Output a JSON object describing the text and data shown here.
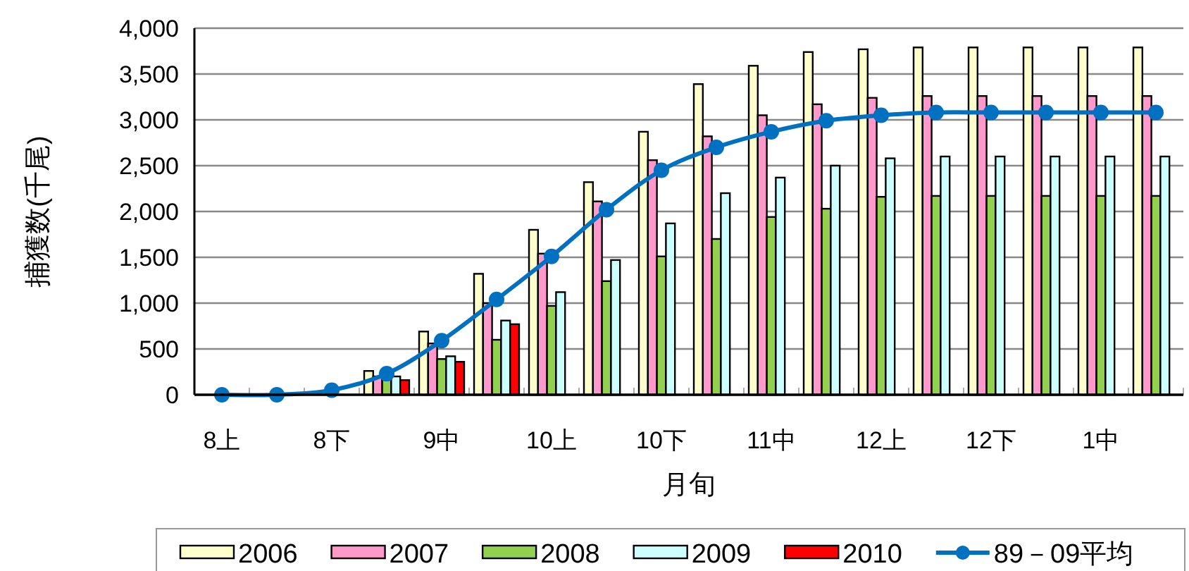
{
  "chart_data": {
    "type": "bar",
    "xlabel": "月旬",
    "ylabel": "捕獲数(千尾)",
    "categories": [
      "8上",
      null,
      "8下",
      null,
      "9中",
      null,
      "10上",
      null,
      "10下",
      null,
      "11中",
      null,
      "12上",
      null,
      "12下",
      null,
      "1中",
      null
    ],
    "ylim": [
      0,
      4000
    ],
    "yticks": [
      {
        "value": 0,
        "label": "0"
      },
      {
        "value": 500,
        "label": "500"
      },
      {
        "value": 1000,
        "label": "1,000"
      },
      {
        "value": 1500,
        "label": "1,500"
      },
      {
        "value": 2000,
        "label": "2,000"
      },
      {
        "value": 2500,
        "label": "2,500"
      },
      {
        "value": 3000,
        "label": "3,000"
      },
      {
        "value": 3500,
        "label": "3,500"
      },
      {
        "value": 4000,
        "label": "4,000"
      }
    ],
    "grid": "y",
    "legend": "bottom",
    "series": [
      {
        "name": "2006",
        "color": "#ffffcc",
        "values": [
          null,
          null,
          null,
          260,
          690,
          1320,
          1800,
          2320,
          2870,
          3390,
          3590,
          3740,
          3770,
          3790,
          3790,
          3790,
          3790,
          3790
        ]
      },
      {
        "name": "2007",
        "color": "#ff99cc",
        "values": [
          null,
          null,
          null,
          200,
          560,
          1000,
          1540,
          2110,
          2560,
          2820,
          3050,
          3170,
          3240,
          3260,
          3260,
          3260,
          3260,
          3260
        ]
      },
      {
        "name": "2008",
        "color": "#92d050",
        "values": [
          null,
          null,
          null,
          200,
          390,
          600,
          970,
          1240,
          1510,
          1700,
          1940,
          2030,
          2160,
          2170,
          2170,
          2170,
          2170,
          2170
        ]
      },
      {
        "name": "2009",
        "color": "#ccffff",
        "values": [
          null,
          null,
          null,
          200,
          420,
          810,
          1120,
          1470,
          1870,
          2200,
          2370,
          2500,
          2580,
          2600,
          2600,
          2600,
          2600,
          2600
        ]
      },
      {
        "name": "2010",
        "color": "#ff0000",
        "values": [
          null,
          null,
          null,
          160,
          360,
          770,
          null,
          null,
          null,
          null,
          null,
          null,
          null,
          null,
          null,
          null,
          null,
          null
        ]
      },
      {
        "name": "89－09平均",
        "type": "line",
        "marker": "circle",
        "color": "#0070c0",
        "values": [
          0,
          0,
          50,
          230,
          590,
          1040,
          1510,
          2020,
          2450,
          2700,
          2870,
          2990,
          3050,
          3080,
          3080,
          3080,
          3080,
          3080
        ]
      }
    ]
  }
}
